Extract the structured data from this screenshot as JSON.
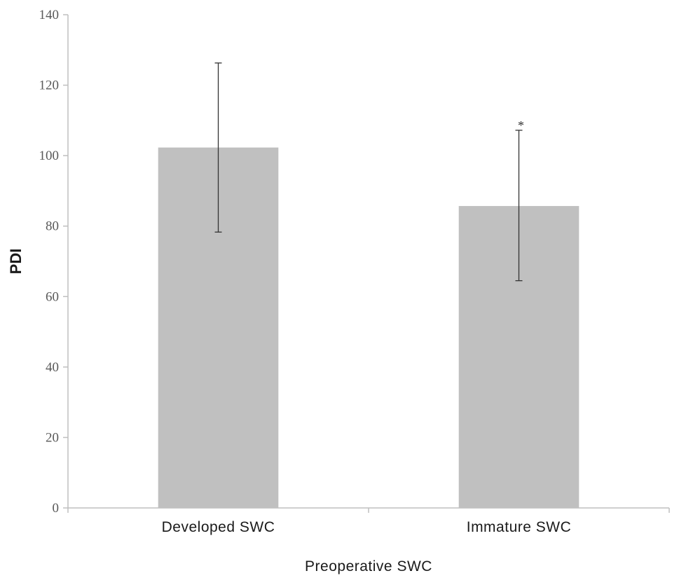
{
  "chart_data": {
    "type": "bar",
    "categories": [
      "Developed SWC",
      "Immature SWC"
    ],
    "values": [
      102.3,
      85.7
    ],
    "error_upper": [
      126.3,
      107.2
    ],
    "error_lower": [
      78.3,
      64.5
    ],
    "annotations": [
      "",
      "*"
    ],
    "xlabel": "Preoperative SWC",
    "ylabel": "PDI",
    "ylim": [
      0,
      140
    ],
    "yticks": [
      0,
      20,
      40,
      60,
      80,
      100,
      120,
      140
    ],
    "grid": false,
    "bar_color": "#c0c0c0",
    "axis_color": "#bfbfbf",
    "error_color": "#333333"
  }
}
